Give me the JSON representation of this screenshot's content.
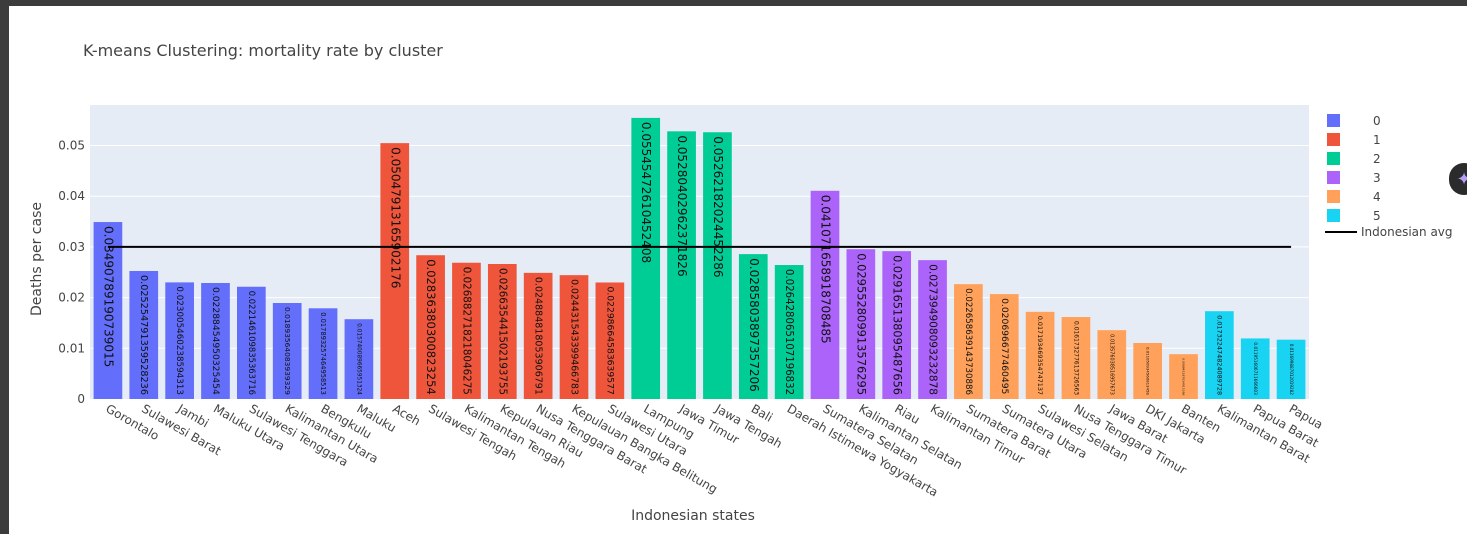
{
  "chart_data": {
    "type": "bar",
    "title": "K-means Clustering: mortality rate by cluster",
    "xlabel": "Indonesian states",
    "ylabel": "Deaths per case",
    "ylim": [
      0,
      0.058
    ],
    "yticks": [
      0,
      0.01,
      0.02,
      0.03,
      0.04,
      0.05
    ],
    "ytick_labels": [
      "0",
      "0.01",
      "0.02",
      "0.03",
      "0.04",
      "0.05"
    ],
    "grid": true,
    "legend_position": "right",
    "series": [
      {
        "name": "0",
        "color": "#636efa",
        "points": [
          {
            "x": "Gorontalo",
            "y": 0.03490789190739015,
            "label": "0.03490789190739015"
          },
          {
            "x": "Sulawesi Barat",
            "y": 0.025254791359528236,
            "label": "0.025254791359528236"
          },
          {
            "x": "Jambi",
            "y": 0.023005460238594313,
            "label": "0.023005460238594313"
          },
          {
            "x": "Maluku Utara",
            "y": 0.02288454950325454,
            "label": "0.02288454950325454"
          },
          {
            "x": "Sulawesi Tenggara",
            "y": 0.022146109835363716,
            "label": "0.022146109835363716"
          },
          {
            "x": "Kalimantan Utara",
            "y": 0.01893564083939329,
            "label": "0.01893564083939329"
          },
          {
            "x": "Bengkulu",
            "y": 0.017893257464958512,
            "label": "0.017893257464958513"
          },
          {
            "x": "Maluku",
            "y": 0.015740089665951324,
            "label": "0.015740089665951324"
          }
        ]
      },
      {
        "name": "1",
        "color": "#ef553b",
        "points": [
          {
            "x": "Aceh",
            "y": 0.05047913165902176,
            "label": "0.05047913165902176"
          },
          {
            "x": "Sulawesi Tengah",
            "y": 0.02836380300823254,
            "label": "0.02836380300823254"
          },
          {
            "x": "Kalimantan Tengah",
            "y": 0.026882718218046275,
            "label": "0.026882718218046275"
          },
          {
            "x": "Kepulauan Riau",
            "y": 0.026635441502193755,
            "label": "0.026635441502193755"
          },
          {
            "x": "Nusa Tenggara Barat",
            "y": 0.024884818053906792,
            "label": "0.024884818053906791"
          },
          {
            "x": "Kepulauan Bangka Belitung",
            "y": 0.024431543399466783,
            "label": "0.024431543399466783"
          },
          {
            "x": "Sulawesi Utara",
            "y": 0.02298664583639577,
            "label": "0.02298664583639577"
          }
        ]
      },
      {
        "name": "2",
        "color": "#00cc96",
        "points": [
          {
            "x": "Lampung",
            "y": 0.05545472610452408,
            "label": "0.05545472610452408"
          },
          {
            "x": "Jawa Timur",
            "y": 0.05280402962371826,
            "label": "0.05280402962371826"
          },
          {
            "x": "Jawa Tengah",
            "y": 0.05262182024452286,
            "label": "0.05262182024452286"
          },
          {
            "x": "Bali",
            "y": 0.0285803897357206,
            "label": "0.0285803897357206"
          },
          {
            "x": "Daerah Istimewa Yogyakarta",
            "y": 0.026428065107196832,
            "label": "0.026428065107196832"
          }
        ]
      },
      {
        "name": "3",
        "color": "#ab63fa",
        "points": [
          {
            "x": "Sumatera Selatan",
            "y": 0.04107165891870849,
            "label": "0.041071658918708485"
          },
          {
            "x": "Kalimantan Selatan",
            "y": 0.029552809913576294,
            "label": "0.029552809913576295"
          },
          {
            "x": "Riau",
            "y": 0.029165138095487656,
            "label": "0.029165138095487656"
          },
          {
            "x": "Kalimantan Timur",
            "y": 0.02739490809323288,
            "label": "0.027394908093232878"
          }
        ]
      },
      {
        "name": "4",
        "color": "#ffa15a",
        "points": [
          {
            "x": "Sumatera Barat",
            "y": 0.022658639143730886,
            "label": "0.022658639143730886"
          },
          {
            "x": "Sumatera Utara",
            "y": 0.020696677460495,
            "label": "0.020696677460495"
          },
          {
            "x": "Sulawesi Selatan",
            "y": 0.017193469354747137,
            "label": "0.017193469354747137"
          },
          {
            "x": "Nusa Tenggara Timur",
            "y": 0.016173277613726562,
            "label": "0.016173277613726563"
          },
          {
            "x": "Jawa Barat",
            "y": 0.013576038516957673,
            "label": "0.013576038516957673"
          },
          {
            "x": "DKI Jakarta",
            "y": 0.011050934560813458,
            "label": "0.011050934560813458"
          },
          {
            "x": "Banten",
            "y": 0.008842187034915397,
            "label": "0.008842187034915396"
          }
        ]
      },
      {
        "name": "5",
        "color": "#19d3f3",
        "points": [
          {
            "x": "Kalimantan Barat",
            "y": 0.017322474824089728,
            "label": "0.017322474824089728"
          },
          {
            "x": "Papua Barat",
            "y": 0.011951606711666602,
            "label": "0.011951606711666603"
          },
          {
            "x": "Papua",
            "y": 0.011699887012019282,
            "label": "0.011699887012019282"
          }
        ]
      }
    ],
    "reference_line": {
      "name": "Indonesian avg",
      "y": 0.03,
      "color": "#000000"
    }
  }
}
